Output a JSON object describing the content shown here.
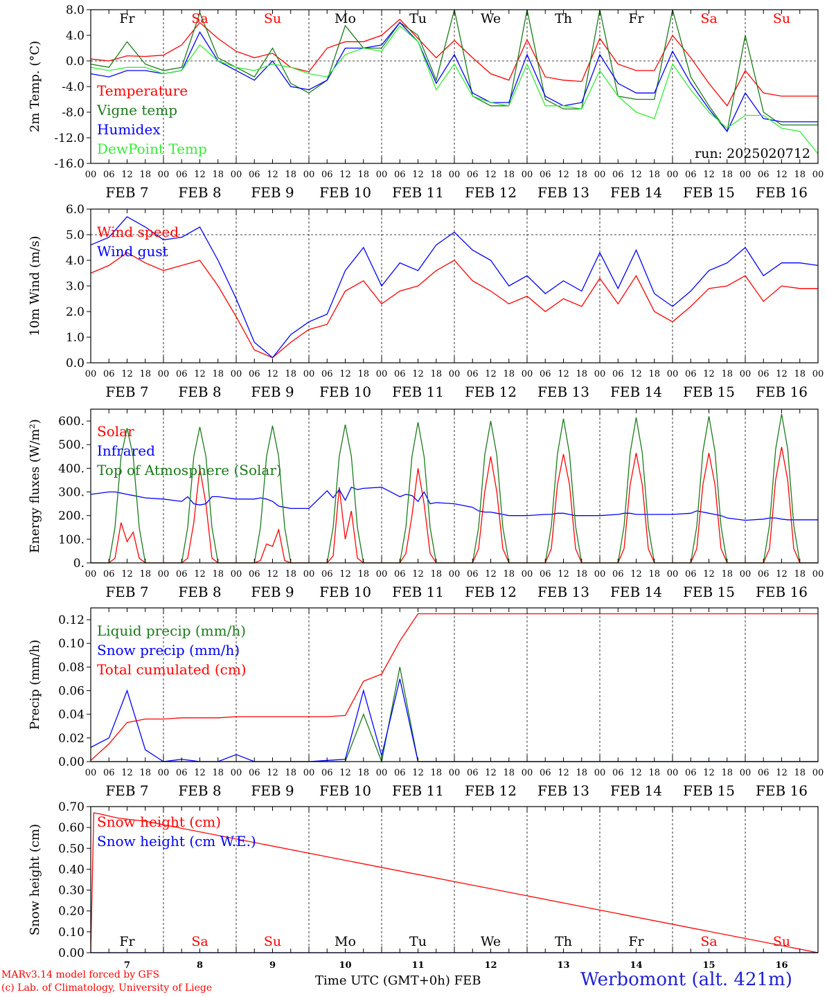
{
  "colors": {
    "red": "#ff0000",
    "green": "#1a7a1a",
    "blue": "#0000ff",
    "lightgreen": "#33ee33",
    "day_black": "#000000",
    "weekend_red": "#ff0000"
  },
  "days": {
    "top_labels": [
      "Fr",
      "Sa",
      "Su",
      "Mo",
      "Tu",
      "We",
      "Th",
      "Fr",
      "Sa",
      "Su"
    ],
    "top_weekend": [
      false,
      true,
      true,
      false,
      false,
      false,
      false,
      false,
      true,
      true
    ],
    "date_labels": [
      "FEB  7",
      "FEB  8",
      "FEB  9",
      "FEB 10",
      "FEB 11",
      "FEB 12",
      "FEB 13",
      "FEB 14",
      "FEB 15",
      "FEB 16"
    ],
    "date_numbers": [
      "7",
      "8",
      "9",
      "10",
      "11",
      "12",
      "13",
      "14",
      "15",
      "16"
    ],
    "hour_ticks": [
      "00",
      "06",
      "12",
      "18"
    ],
    "hour_end": "00"
  },
  "footer": {
    "credit_line1": "MARv3.14 model forced by GFS",
    "credit_line2": "(c) Lab. of Climatology, University of Liege",
    "xlabel": "Time UTC (GMT+0h) FEB",
    "station": "Werbomont (alt. 421m)"
  },
  "chart_data": [
    {
      "type": "line",
      "ylabel": "2m Temp. (°C)",
      "ylim": [
        -16,
        8
      ],
      "yticks": [
        "8.0",
        "4.0",
        "0.0",
        "-4.0",
        "-8.0",
        "-12.0",
        "-16.0"
      ],
      "ytick_values": [
        8,
        4,
        0,
        -4,
        -8,
        -12,
        -16
      ],
      "ref_line": 0,
      "annotation": "run: 2025020712",
      "x_hours": [
        0,
        6,
        12,
        18,
        24,
        30,
        36,
        42,
        48,
        54,
        60,
        66,
        72,
        78,
        84,
        90,
        96,
        102,
        108,
        114,
        120,
        126,
        132,
        138,
        144,
        150,
        156,
        162,
        168,
        174,
        180,
        186,
        192,
        198,
        204,
        210,
        216,
        222,
        228,
        234,
        240
      ],
      "series": [
        {
          "name": "Temperature",
          "color_key": "red",
          "values": [
            0.3,
            0.0,
            0.8,
            0.7,
            0.9,
            2.5,
            6.0,
            3.5,
            1.5,
            0.5,
            1.2,
            -1.0,
            -1.7,
            2.0,
            3.0,
            3.0,
            4.0,
            6.5,
            3.5,
            0.5,
            3.2,
            0.5,
            -2.0,
            -3.0,
            3.3,
            -2.5,
            -3.0,
            -3.2,
            3.5,
            -0.5,
            -1.5,
            -1.5,
            4.0,
            0.5,
            -3.5,
            -7.0,
            -1.5,
            -5.0,
            -5.5,
            -5.5,
            -5.5
          ]
        },
        {
          "name": "Vigne temp",
          "color_key": "green",
          "values": [
            -0.5,
            -1.0,
            3.0,
            -0.5,
            -1.5,
            -1.0,
            7.5,
            0.5,
            -1.0,
            -2.5,
            2.0,
            -3.5,
            -5.0,
            -3.0,
            5.5,
            2.0,
            2.0,
            6.0,
            4.0,
            -3.0,
            8.0,
            -5.5,
            -7.0,
            -7.0,
            8.0,
            -6.0,
            -7.5,
            -7.5,
            8.0,
            -5.5,
            -6.0,
            -6.0,
            8.0,
            -2.5,
            -7.0,
            -11.0,
            4.0,
            -8.0,
            -10.0,
            -10.0,
            -10.0
          ]
        },
        {
          "name": "Humidex",
          "color_key": "blue",
          "values": [
            -2.0,
            -2.5,
            -1.5,
            -1.5,
            -2.0,
            -1.5,
            4.5,
            0.0,
            -1.5,
            -3.0,
            0.0,
            -4.0,
            -4.5,
            -3.0,
            2.0,
            2.0,
            2.5,
            6.0,
            3.0,
            -3.5,
            1.0,
            -5.0,
            -6.5,
            -6.5,
            1.0,
            -5.5,
            -7.0,
            -6.5,
            1.0,
            -3.5,
            -5.0,
            -5.0,
            1.5,
            -3.5,
            -7.5,
            -11.0,
            -5.0,
            -9.0,
            -9.5,
            -9.5,
            -9.5
          ]
        },
        {
          "name": "DewPoint Temp",
          "color_key": "lightgreen",
          "values": [
            -1.0,
            -1.5,
            -1.0,
            -1.0,
            -2.0,
            -1.5,
            2.5,
            0.0,
            -1.0,
            -1.5,
            -0.5,
            -1.0,
            -2.0,
            -2.5,
            1.0,
            2.0,
            1.5,
            5.5,
            3.0,
            -4.5,
            -0.5,
            -5.5,
            -6.5,
            -7.0,
            -0.5,
            -7.0,
            -7.0,
            -7.5,
            -1.5,
            -5.5,
            -8.0,
            -9.0,
            -0.5,
            -4.5,
            -8.0,
            -10.5,
            -8.5,
            -8.5,
            -10.5,
            -11.0,
            -14.5
          ]
        }
      ]
    },
    {
      "type": "line",
      "ylabel": "10m Wind (m/s)",
      "ylim": [
        0,
        6
      ],
      "yticks": [
        "6.0",
        "5.0",
        "4.0",
        "3.0",
        "2.0",
        "1.0",
        "0.0"
      ],
      "ytick_values": [
        6,
        5,
        4,
        3,
        2,
        1,
        0
      ],
      "ref_line": 5,
      "x_hours": [
        0,
        6,
        12,
        18,
        24,
        30,
        36,
        42,
        48,
        54,
        60,
        66,
        72,
        78,
        84,
        90,
        96,
        102,
        108,
        114,
        120,
        126,
        132,
        138,
        144,
        150,
        156,
        162,
        168,
        174,
        180,
        186,
        192,
        198,
        204,
        210,
        216,
        222,
        228,
        234,
        240
      ],
      "series": [
        {
          "name": "Wind speed",
          "color_key": "red",
          "values": [
            3.5,
            3.8,
            4.3,
            3.9,
            3.6,
            3.8,
            4.0,
            3.0,
            1.8,
            0.5,
            0.2,
            0.8,
            1.3,
            1.5,
            2.8,
            3.2,
            2.3,
            2.8,
            3.0,
            3.6,
            4.0,
            3.2,
            2.8,
            2.3,
            2.6,
            2.0,
            2.5,
            2.2,
            3.3,
            2.3,
            3.4,
            2.0,
            1.6,
            2.2,
            2.9,
            3.0,
            3.4,
            2.4,
            3.0,
            2.9,
            2.9
          ]
        },
        {
          "name": "Wind gust",
          "color_key": "blue",
          "values": [
            4.6,
            4.9,
            5.7,
            5.3,
            4.8,
            4.9,
            5.3,
            4.0,
            2.5,
            0.8,
            0.2,
            1.1,
            1.6,
            1.9,
            3.6,
            4.5,
            3.0,
            3.9,
            3.6,
            4.6,
            5.1,
            4.4,
            4.0,
            3.0,
            3.4,
            2.7,
            3.2,
            2.8,
            4.3,
            2.9,
            4.4,
            2.7,
            2.2,
            2.8,
            3.6,
            3.9,
            4.5,
            3.4,
            3.9,
            3.9,
            3.8
          ]
        }
      ]
    },
    {
      "type": "line",
      "ylabel": "Energy fluxes (W/m²)",
      "ylim": [
        0,
        650
      ],
      "yticks": [
        "600.",
        "500.",
        "400.",
        "300.",
        "200.",
        "100.",
        "0."
      ],
      "ytick_values": [
        600,
        500,
        400,
        300,
        200,
        100,
        0
      ],
      "x_hours": [
        0,
        6,
        8,
        10,
        12,
        14,
        16,
        18,
        24,
        30,
        32,
        34,
        36,
        38,
        40,
        42,
        48,
        54,
        56,
        58,
        60,
        62,
        64,
        66,
        72,
        78,
        80,
        82,
        84,
        86,
        88,
        90,
        96,
        102,
        104,
        106,
        108,
        110,
        112,
        114,
        120,
        126,
        128,
        130,
        132,
        134,
        136,
        138,
        144,
        150,
        152,
        154,
        156,
        158,
        160,
        162,
        168,
        174,
        176,
        178,
        180,
        182,
        184,
        186,
        192,
        198,
        200,
        202,
        204,
        206,
        208,
        210,
        216,
        222,
        224,
        226,
        228,
        230,
        232,
        234,
        240
      ],
      "series": [
        {
          "name": "Solar",
          "color_key": "red",
          "values": [
            0,
            0,
            20,
            170,
            90,
            130,
            20,
            0,
            0,
            0,
            20,
            170,
            400,
            250,
            20,
            0,
            0,
            0,
            10,
            80,
            70,
            140,
            10,
            0,
            0,
            0,
            30,
            320,
            100,
            220,
            20,
            0,
            0,
            0,
            40,
            200,
            400,
            250,
            40,
            0,
            0,
            0,
            60,
            300,
            450,
            300,
            60,
            0,
            0,
            0,
            60,
            330,
            460,
            330,
            60,
            0,
            0,
            0,
            60,
            330,
            465,
            330,
            60,
            0,
            0,
            0,
            60,
            330,
            465,
            330,
            60,
            0,
            0,
            0,
            60,
            350,
            490,
            350,
            60,
            0,
            0
          ]
        },
        {
          "name": "Infrared",
          "color_key": "blue",
          "values": [
            290,
            300,
            300,
            295,
            290,
            285,
            280,
            275,
            270,
            260,
            280,
            250,
            245,
            250,
            280,
            280,
            270,
            270,
            275,
            270,
            260,
            240,
            235,
            230,
            230,
            305,
            275,
            310,
            265,
            320,
            310,
            315,
            320,
            280,
            290,
            285,
            260,
            300,
            250,
            255,
            250,
            235,
            220,
            215,
            215,
            210,
            205,
            200,
            200,
            205,
            205,
            210,
            210,
            205,
            200,
            200,
            200,
            205,
            210,
            210,
            205,
            205,
            205,
            205,
            205,
            210,
            220,
            215,
            210,
            205,
            200,
            190,
            180,
            185,
            190,
            190,
            185,
            182,
            182,
            182,
            182
          ]
        },
        {
          "name": "Top of Atmosphere (Solar)",
          "color_key": "green",
          "values": [
            0,
            0,
            150,
            450,
            570,
            450,
            150,
            0,
            0,
            0,
            150,
            450,
            575,
            450,
            150,
            0,
            0,
            0,
            150,
            450,
            580,
            450,
            150,
            0,
            0,
            0,
            150,
            450,
            585,
            450,
            150,
            0,
            0,
            0,
            150,
            450,
            595,
            450,
            150,
            0,
            0,
            0,
            150,
            455,
            600,
            455,
            150,
            0,
            0,
            0,
            155,
            460,
            610,
            460,
            155,
            0,
            0,
            0,
            155,
            465,
            615,
            465,
            155,
            0,
            0,
            0,
            155,
            470,
            620,
            470,
            155,
            0,
            0,
            0,
            160,
            480,
            630,
            480,
            160,
            0,
            0
          ]
        }
      ]
    },
    {
      "type": "line",
      "ylabel": "Precip (mm/h)",
      "ylim": [
        0,
        0.13
      ],
      "yticks": [
        "0.12",
        "0.10",
        "0.08",
        "0.06",
        "0.04",
        "0.02",
        "0.00"
      ],
      "ytick_values": [
        0.12,
        0.1,
        0.08,
        0.06,
        0.04,
        0.02,
        0.0
      ],
      "x_hours": [
        0,
        6,
        12,
        18,
        24,
        30,
        36,
        42,
        48,
        54,
        60,
        66,
        72,
        78,
        84,
        90,
        96,
        102,
        108,
        114,
        120,
        126,
        132,
        138,
        144,
        150,
        156,
        162,
        168,
        174,
        180,
        186,
        192,
        198,
        204,
        210,
        216,
        222,
        228,
        234,
        240
      ],
      "series": [
        {
          "name": "Liquid precip (mm/h)",
          "color_key": "green",
          "values": [
            0,
            0,
            0,
            0,
            0,
            0,
            0,
            0,
            0,
            0,
            0,
            0,
            0,
            0,
            0,
            0.04,
            0,
            0.08,
            0,
            0,
            0,
            0,
            0,
            0,
            0,
            0,
            0,
            0,
            0,
            0,
            0,
            0,
            0,
            0,
            0,
            0,
            0,
            0,
            0,
            0,
            0
          ]
        },
        {
          "name": "Snow precip (mm/h)",
          "color_key": "blue",
          "values": [
            0.012,
            0.02,
            0.06,
            0.01,
            0,
            0.002,
            0,
            0,
            0.006,
            0,
            0,
            0,
            0,
            0.001,
            0.002,
            0.06,
            0.005,
            0.07,
            0,
            0,
            0,
            0,
            0,
            0,
            0,
            0,
            0,
            0,
            0,
            0,
            0,
            0,
            0,
            0,
            0,
            0,
            0,
            0,
            0,
            0,
            0
          ]
        },
        {
          "name": "Total cumulated (cm)",
          "color_key": "red",
          "values": [
            0.001,
            0.015,
            0.033,
            0.036,
            0.036,
            0.037,
            0.037,
            0.037,
            0.038,
            0.038,
            0.038,
            0.038,
            0.038,
            0.038,
            0.039,
            0.068,
            0.074,
            0.102,
            0.125,
            0.125,
            0.125,
            0.125,
            0.125,
            0.125,
            0.125,
            0.125,
            0.125,
            0.125,
            0.125,
            0.125,
            0.125,
            0.125,
            0.125,
            0.125,
            0.125,
            0.125,
            0.125,
            0.125,
            0.125,
            0.125,
            0.125
          ]
        }
      ]
    },
    {
      "type": "line",
      "ylabel": "Snow height (cm)",
      "ylim": [
        0,
        0.7
      ],
      "yticks": [
        "0.70",
        "0.60",
        "0.50",
        "0.40",
        "0.30",
        "0.20",
        "0.10",
        "0.00"
      ],
      "ytick_values": [
        0.7,
        0.6,
        0.5,
        0.4,
        0.3,
        0.2,
        0.1,
        0.0
      ],
      "x_hours": [
        0,
        1,
        3,
        6,
        9,
        12,
        15,
        18,
        240
      ],
      "series": [
        {
          "name": "Snow height (cm)",
          "color_key": "red",
          "values": [
            0,
            0.67,
            0.665,
            0.655,
            0.645,
            0.64,
            0.635,
            0.63,
            0
          ]
        },
        {
          "name": "Snow height (cm W.E.)",
          "color_key": "blue",
          "values": [
            0,
            0,
            0,
            0,
            0,
            0,
            0,
            0,
            0
          ]
        }
      ]
    }
  ]
}
